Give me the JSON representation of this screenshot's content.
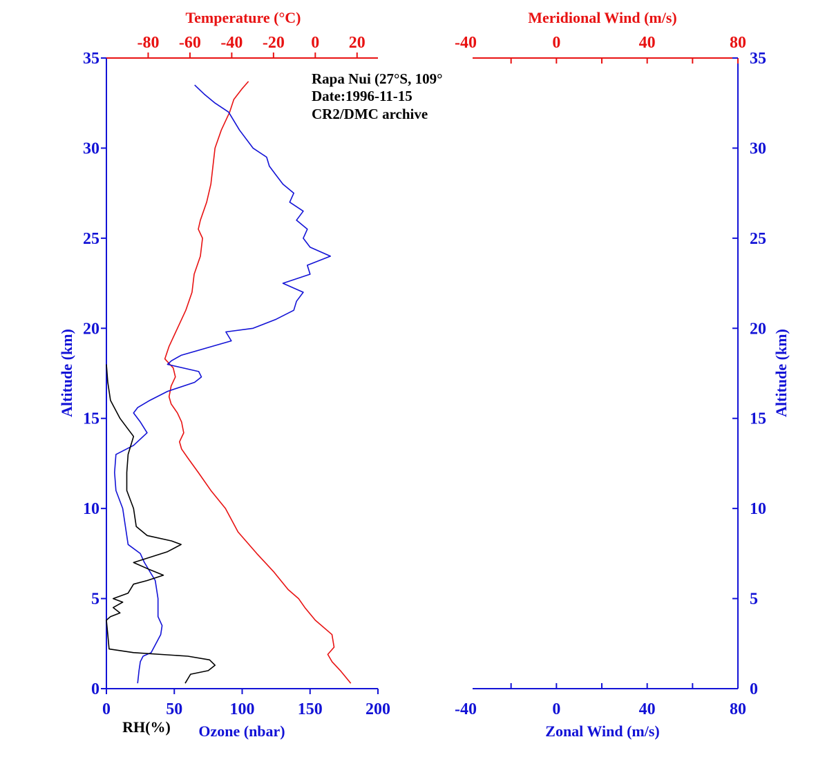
{
  "colors": {
    "blue": "#1212d6",
    "red": "#e81212",
    "black": "#000000"
  },
  "annotation": [
    "Rapa Nui (27°S, 109°",
    "Date:1996-11-15",
    "CR2/DMC archive"
  ],
  "chart_data": [
    {
      "type": "line",
      "panel": "left",
      "y_axis": {
        "label": "Altitude (km)",
        "range": [
          0,
          35
        ],
        "ticks": [
          "0",
          "5",
          "10",
          "15",
          "20",
          "25",
          "30",
          "35"
        ]
      },
      "bottom_axis": {
        "label": "Ozone (nbar)",
        "range": [
          0,
          200
        ],
        "ticks": [
          "0",
          "50",
          "100",
          "150",
          "200"
        ]
      },
      "rh_label": "RH(%)",
      "top_axis": {
        "label": "Temperature (°C)",
        "range": [
          -100,
          30
        ],
        "ticks": [
          "-80",
          "-60",
          "-40",
          "-20",
          "0",
          "20"
        ]
      },
      "series": [
        {
          "name": "Temperature (°C)",
          "color": "#e81212",
          "axis": "top",
          "points": [
            [
              17,
              0.3
            ],
            [
              12,
              1
            ],
            [
              8,
              1.5
            ],
            [
              6,
              1.9
            ],
            [
              9,
              2.3
            ],
            [
              8,
              3
            ],
            [
              0,
              3.8
            ],
            [
              -5,
              4.5
            ],
            [
              -8,
              5
            ],
            [
              -13,
              5.5
            ],
            [
              -20,
              6.5
            ],
            [
              -28,
              7.5
            ],
            [
              -37,
              8.7
            ],
            [
              -43,
              10
            ],
            [
              -50,
              11
            ],
            [
              -56,
              12
            ],
            [
              -61,
              12.8
            ],
            [
              -64,
              13.3
            ],
            [
              -65,
              13.7
            ],
            [
              -63,
              14.2
            ],
            [
              -64,
              14.8
            ],
            [
              -66,
              15.3
            ],
            [
              -69,
              15.8
            ],
            [
              -70,
              16.2
            ],
            [
              -69,
              16.8
            ],
            [
              -67,
              17.3
            ],
            [
              -68,
              17.8
            ],
            [
              -72,
              18.3
            ],
            [
              -70,
              19
            ],
            [
              -66,
              20
            ],
            [
              -62,
              21
            ],
            [
              -59,
              22
            ],
            [
              -58,
              23
            ],
            [
              -55,
              24
            ],
            [
              -54,
              25
            ],
            [
              -56,
              25.5
            ],
            [
              -55,
              26
            ],
            [
              -52,
              27
            ],
            [
              -50,
              28
            ],
            [
              -49,
              29
            ],
            [
              -48,
              30
            ],
            [
              -45,
              31
            ],
            [
              -41,
              32
            ],
            [
              -39,
              32.7
            ],
            [
              -35,
              33.3
            ],
            [
              -32,
              33.7
            ]
          ]
        },
        {
          "name": "Ozone (nbar)",
          "color": "#1212d6",
          "axis": "bottom",
          "points": [
            [
              23,
              0.3
            ],
            [
              24,
              1
            ],
            [
              25,
              1.5
            ],
            [
              27,
              1.8
            ],
            [
              33,
              2
            ],
            [
              40,
              3
            ],
            [
              41,
              3.5
            ],
            [
              38,
              4
            ],
            [
              38,
              5
            ],
            [
              36,
              6
            ],
            [
              28,
              7
            ],
            [
              25,
              7.5
            ],
            [
              16,
              8
            ],
            [
              14,
              9
            ],
            [
              12,
              10
            ],
            [
              7,
              11
            ],
            [
              6,
              12
            ],
            [
              7,
              13
            ],
            [
              20,
              13.5
            ],
            [
              30,
              14.2
            ],
            [
              25,
              14.8
            ],
            [
              20,
              15.3
            ],
            [
              23,
              15.6
            ],
            [
              32,
              16
            ],
            [
              45,
              16.5
            ],
            [
              65,
              17
            ],
            [
              70,
              17.3
            ],
            [
              68,
              17.6
            ],
            [
              45,
              18
            ],
            [
              48,
              18.2
            ],
            [
              55,
              18.5
            ],
            [
              78,
              19
            ],
            [
              92,
              19.3
            ],
            [
              88,
              19.8
            ],
            [
              108,
              20
            ],
            [
              125,
              20.5
            ],
            [
              138,
              21
            ],
            [
              140,
              21.5
            ],
            [
              145,
              22
            ],
            [
              130,
              22.5
            ],
            [
              150,
              23
            ],
            [
              148,
              23.5
            ],
            [
              165,
              24
            ],
            [
              150,
              24.5
            ],
            [
              145,
              25
            ],
            [
              148,
              25.5
            ],
            [
              140,
              26
            ],
            [
              145,
              26.5
            ],
            [
              135,
              27
            ],
            [
              138,
              27.5
            ],
            [
              130,
              28
            ],
            [
              125,
              28.5
            ],
            [
              120,
              29
            ],
            [
              118,
              29.5
            ],
            [
              108,
              30
            ],
            [
              98,
              31
            ],
            [
              90,
              32
            ],
            [
              80,
              32.5
            ],
            [
              72,
              33
            ],
            [
              65,
              33.5
            ]
          ]
        },
        {
          "name": "RH(%)",
          "color": "#000000",
          "axis": "bottom",
          "points": [
            [
              58,
              0.3
            ],
            [
              62,
              0.8
            ],
            [
              75,
              1
            ],
            [
              80,
              1.3
            ],
            [
              76,
              1.6
            ],
            [
              60,
              1.8
            ],
            [
              20,
              2
            ],
            [
              2,
              2.2
            ],
            [
              1,
              3
            ],
            [
              0,
              3.8
            ],
            [
              3,
              4
            ],
            [
              10,
              4.2
            ],
            [
              5,
              4.5
            ],
            [
              12,
              4.8
            ],
            [
              5,
              5
            ],
            [
              16,
              5.3
            ],
            [
              20,
              5.8
            ],
            [
              30,
              6
            ],
            [
              42,
              6.3
            ],
            [
              32,
              6.6
            ],
            [
              20,
              7
            ],
            [
              45,
              7.6
            ],
            [
              55,
              8
            ],
            [
              48,
              8.2
            ],
            [
              30,
              8.5
            ],
            [
              22,
              9
            ],
            [
              20,
              10
            ],
            [
              15,
              11
            ],
            [
              15,
              12
            ],
            [
              16,
              13
            ],
            [
              20,
              14
            ],
            [
              15,
              14.5
            ],
            [
              10,
              15
            ],
            [
              3,
              16
            ],
            [
              1,
              17
            ],
            [
              0,
              18
            ]
          ]
        }
      ]
    },
    {
      "type": "line",
      "panel": "right",
      "y_axis": {
        "label": "Altitude (km)",
        "range": [
          0,
          35
        ],
        "ticks": [
          "0",
          "5",
          "10",
          "15",
          "20",
          "25",
          "30",
          "35"
        ]
      },
      "bottom_axis": {
        "label": "Zonal Wind (m/s)",
        "range": [
          -40,
          80
        ],
        "ticks": [
          "-40",
          "0",
          "40",
          "80"
        ]
      },
      "top_axis": {
        "label": "Meridional Wind (m/s)",
        "range": [
          -40,
          80
        ],
        "ticks": [
          "-40",
          "0",
          "40",
          "80"
        ]
      },
      "series": []
    }
  ]
}
